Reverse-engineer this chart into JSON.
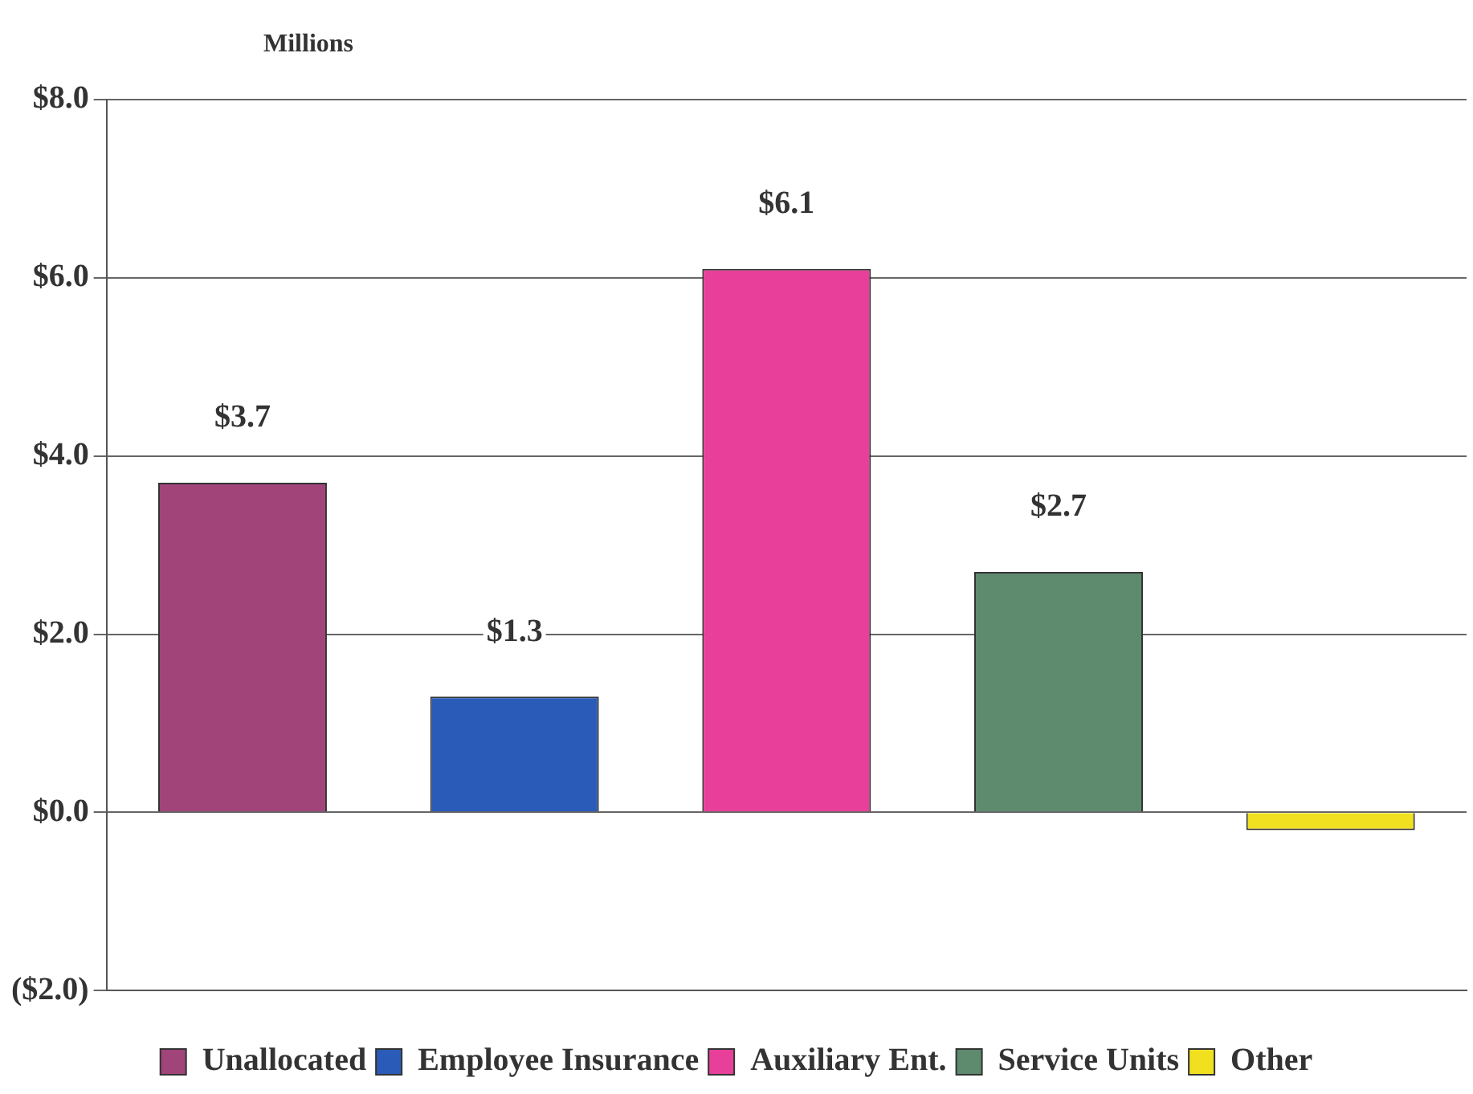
{
  "chart_data": {
    "type": "bar",
    "ylabel": "Millions",
    "categories": [
      null,
      null,
      null,
      null,
      null
    ],
    "series": [
      {
        "name": "Unallocated",
        "color": "#a0447a",
        "values": [
          3.7,
          null,
          null,
          null,
          null
        ],
        "value_labels": [
          "$3.7",
          null,
          null,
          null,
          null
        ]
      },
      {
        "name": "Employee Insurance",
        "color": "#2a5bb8",
        "values": [
          null,
          1.3,
          null,
          null,
          null
        ],
        "value_labels": [
          null,
          "$1.3",
          null,
          null,
          null
        ]
      },
      {
        "name": "Auxiliary Ent.",
        "color": "#e8409a",
        "values": [
          null,
          null,
          6.1,
          null,
          null
        ],
        "value_labels": [
          null,
          null,
          "$6.1",
          null,
          null
        ]
      },
      {
        "name": "Service Units",
        "color": "#5e8a6e",
        "values": [
          null,
          null,
          null,
          2.7,
          null
        ],
        "value_labels": [
          null,
          null,
          null,
          "$2.7",
          null
        ]
      },
      {
        "name": "Other",
        "color": "#f0e020",
        "values": [
          null,
          null,
          null,
          null,
          -0.2
        ]
      }
    ],
    "ylim": [
      -2,
      8
    ],
    "yticks": [
      {
        "value": -2,
        "label": "($2.0)"
      },
      {
        "value": 0,
        "label": "$0.0"
      },
      {
        "value": 2,
        "label": "$2.0"
      },
      {
        "value": 4,
        "label": "$4.0"
      },
      {
        "value": 6,
        "label": "$6.0"
      },
      {
        "value": 8,
        "label": "$8.0"
      }
    ],
    "grid": "y",
    "legend": "bottom"
  }
}
